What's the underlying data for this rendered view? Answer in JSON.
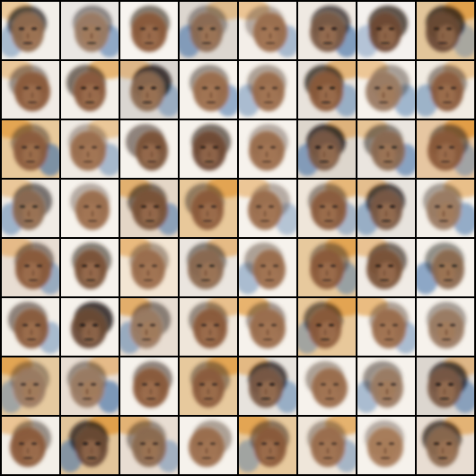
{
  "grid": {
    "rows": 8,
    "columns": 8,
    "border_color": "#000000"
  },
  "palette": {
    "background_light": "#f6f2ec",
    "skin_mid": "#a77a58",
    "skin_dark": "#7a5238",
    "hair_dark": "#2a1c14",
    "accent_blue": "#3d6fa8",
    "accent_orange": "#e0902a"
  },
  "tiles": [
    {
      "background": "#f2efe9",
      "face": "#8f6a4e",
      "dark": "#1f1a18",
      "blue": 0.2,
      "orange": 0.1,
      "bold": 0.8
    },
    {
      "background": "#e9e6e3",
      "face": "#9a7a62",
      "dark": "#2b2521",
      "blue": 0.4,
      "orange": 0.0,
      "bold": 0.4
    },
    {
      "background": "#f7f4ef",
      "face": "#8a5a3a",
      "dark": "#3a2a20",
      "blue": 0.0,
      "orange": 0.0,
      "bold": 0.6
    },
    {
      "background": "#dcd6cf",
      "face": "#8b6a52",
      "dark": "#2d2722",
      "blue": 0.5,
      "orange": 0.1,
      "bold": 0.3
    },
    {
      "background": "#f3eee8",
      "face": "#9a6b4b",
      "dark": "#4a3527",
      "blue": 0.2,
      "orange": 0.2,
      "bold": 0.2
    },
    {
      "background": "#efe9e2",
      "face": "#7a5a44",
      "dark": "#1b1614",
      "blue": 0.6,
      "orange": 0.0,
      "bold": 0.7
    },
    {
      "background": "#f4f1ee",
      "face": "#6f4a35",
      "dark": "#2a1c14",
      "blue": 0.1,
      "orange": 0.0,
      "bold": 0.8
    },
    {
      "background": "#e2c59a",
      "face": "#6a4a35",
      "dark": "#251a14",
      "blue": 0.1,
      "orange": 0.7,
      "bold": 0.9
    },
    {
      "background": "#f0ebe5",
      "face": "#8a5a3a",
      "dark": "#3a2a20",
      "blue": 0.0,
      "orange": 0.1,
      "bold": 0.4
    },
    {
      "background": "#f3efe8",
      "face": "#8a5b3c",
      "dark": "#2a1c14",
      "blue": 0.0,
      "orange": 0.5,
      "bold": 0.6
    },
    {
      "background": "#dad6d1",
      "face": "#8a684f",
      "dark": "#171313",
      "blue": 0.2,
      "orange": 0.2,
      "bold": 0.9
    },
    {
      "background": "#f6f2ec",
      "face": "#9a6b4b",
      "dark": "#3b2b22",
      "blue": 0.4,
      "orange": 0.0,
      "bold": 0.4
    },
    {
      "background": "#f6f2ec",
      "face": "#9a6b4b",
      "dark": "#4a3527",
      "blue": 0.2,
      "orange": 0.0,
      "bold": 0.3
    },
    {
      "background": "#e8e2db",
      "face": "#8a5a3a",
      "dark": "#231a14",
      "blue": 0.3,
      "orange": 0.4,
      "bold": 0.8
    },
    {
      "background": "#f6f2ec",
      "face": "#9a7a62",
      "dark": "#3a2d25",
      "blue": 0.3,
      "orange": 0.2,
      "bold": 0.3
    },
    {
      "background": "#f1ebe2",
      "face": "#8a5b3c",
      "dark": "#3a2a20",
      "blue": 0.3,
      "orange": 0.1,
      "bold": 0.4
    },
    {
      "background": "#e8c99b",
      "face": "#8a5b3c",
      "dark": "#3a2a20",
      "blue": 0.6,
      "orange": 0.6,
      "bold": 0.4
    },
    {
      "background": "#efeae3",
      "face": "#9a6b4b",
      "dark": "#4a3527",
      "blue": 0.2,
      "orange": 0.1,
      "bold": 0.2
    },
    {
      "background": "#f6f2ec",
      "face": "#7a5238",
      "dark": "#3a2a20",
      "blue": 0.0,
      "orange": 0.0,
      "bold": 0.5
    },
    {
      "background": "#f6f2ec",
      "face": "#6f4a35",
      "dark": "#2a1c14",
      "blue": 0.0,
      "orange": 0.0,
      "bold": 0.6
    },
    {
      "background": "#f6f2ec",
      "face": "#9a6b4b",
      "dark": "#4a3527",
      "blue": 0.0,
      "orange": 0.0,
      "bold": 0.2
    },
    {
      "background": "#ddd6cc",
      "face": "#7a5a44",
      "dark": "#171313",
      "blue": 0.5,
      "orange": 0.3,
      "bold": 0.9
    },
    {
      "background": "#eae5df",
      "face": "#8a684f",
      "dark": "#2d2722",
      "blue": 0.5,
      "orange": 0.1,
      "bold": 0.5
    },
    {
      "background": "#e6c6a1",
      "face": "#8a5a3a",
      "dark": "#3a2a20",
      "blue": 0.2,
      "orange": 0.8,
      "bold": 0.6
    },
    {
      "background": "#f0ebe5",
      "face": "#8a684f",
      "dark": "#2d2722",
      "blue": 0.3,
      "orange": 0.1,
      "bold": 0.6
    },
    {
      "background": "#f6f2ec",
      "face": "#9a6b4b",
      "dark": "#4a3527",
      "blue": 0.0,
      "orange": 0.0,
      "bold": 0.2
    },
    {
      "background": "#e4d6c6",
      "face": "#7a5238",
      "dark": "#2a1c14",
      "blue": 0.4,
      "orange": 0.4,
      "bold": 0.6
    },
    {
      "background": "#e8c89a",
      "face": "#8a5a3a",
      "dark": "#3a2a20",
      "blue": 0.0,
      "orange": 0.6,
      "bold": 0.4
    },
    {
      "background": "#f6f2ec",
      "face": "#9a6b4b",
      "dark": "#4a3527",
      "blue": 0.1,
      "orange": 0.2,
      "bold": 0.2
    },
    {
      "background": "#efe6da",
      "face": "#8a5b3c",
      "dark": "#3a2a20",
      "blue": 0.2,
      "orange": 0.4,
      "bold": 0.4
    },
    {
      "background": "#e7e3dd",
      "face": "#7a5a44",
      "dark": "#171313",
      "blue": 0.3,
      "orange": 0.2,
      "bold": 0.8
    },
    {
      "background": "#f3efe8",
      "face": "#9a7a62",
      "dark": "#3a2d25",
      "blue": 0.4,
      "orange": 0.3,
      "bold": 0.3
    },
    {
      "background": "#e8ddd2",
      "face": "#8a5a3a",
      "dark": "#3a2a20",
      "blue": 0.3,
      "orange": 0.2,
      "bold": 0.5
    },
    {
      "background": "#f6f2ec",
      "face": "#7a5238",
      "dark": "#2a1c14",
      "blue": 0.0,
      "orange": 0.0,
      "bold": 0.5
    },
    {
      "background": "#f3e5d3",
      "face": "#9a6b4b",
      "dark": "#4a3527",
      "blue": 0.0,
      "orange": 0.3,
      "bold": 0.3
    },
    {
      "background": "#eae5df",
      "face": "#8a684f",
      "dark": "#2d2722",
      "blue": 0.0,
      "orange": 0.3,
      "bold": 0.5
    },
    {
      "background": "#f6f2ec",
      "face": "#9a6b4b",
      "dark": "#4a3527",
      "blue": 0.2,
      "orange": 0.0,
      "bold": 0.3
    },
    {
      "background": "#e7c99d",
      "face": "#8a5a3a",
      "dark": "#3a2a20",
      "blue": 0.3,
      "orange": 0.6,
      "bold": 0.4
    },
    {
      "background": "#f0ebe5",
      "face": "#7a5238",
      "dark": "#2a1c14",
      "blue": 0.0,
      "orange": 0.2,
      "bold": 0.6
    },
    {
      "background": "#f6f2ec",
      "face": "#8a684f",
      "dark": "#2d2722",
      "blue": 0.5,
      "orange": 0.0,
      "bold": 0.4
    },
    {
      "background": "#f3efe8",
      "face": "#8a5b3c",
      "dark": "#3a2a20",
      "blue": 0.2,
      "orange": 0.0,
      "bold": 0.5
    },
    {
      "background": "#f6f2ec",
      "face": "#6a4a35",
      "dark": "#171313",
      "blue": 0.0,
      "orange": 0.0,
      "bold": 0.9
    },
    {
      "background": "#e8ddd2",
      "face": "#9a7a62",
      "dark": "#3a2d25",
      "blue": 0.3,
      "orange": 0.5,
      "bold": 0.5
    },
    {
      "background": "#efe6da",
      "face": "#8a5a3a",
      "dark": "#3a2a20",
      "blue": 0.0,
      "orange": 0.2,
      "bold": 0.4
    },
    {
      "background": "#f6f2ec",
      "face": "#9a6b4b",
      "dark": "#4a3527",
      "blue": 0.0,
      "orange": 0.6,
      "bold": 0.4
    },
    {
      "background": "#e8c89a",
      "face": "#8a5a3a",
      "dark": "#2a1c14",
      "blue": 0.2,
      "orange": 0.6,
      "bold": 0.6
    },
    {
      "background": "#f6f2ec",
      "face": "#9a6b4b",
      "dark": "#4a3527",
      "blue": 0.2,
      "orange": 0.4,
      "bold": 0.3
    },
    {
      "background": "#f6f2ec",
      "face": "#9a7a62",
      "dark": "#3a2d25",
      "blue": 0.0,
      "orange": 0.0,
      "bold": 0.3
    },
    {
      "background": "#e5c99f",
      "face": "#9a7a62",
      "dark": "#3a2d25",
      "blue": 0.2,
      "orange": 0.6,
      "bold": 0.3
    },
    {
      "background": "#e8ddd2",
      "face": "#9a7a62",
      "dark": "#3a2d25",
      "blue": 0.6,
      "orange": 0.2,
      "bold": 0.4
    },
    {
      "background": "#f6f2ec",
      "face": "#8a5a3a",
      "dark": "#3a2a20",
      "blue": 0.0,
      "orange": 0.0,
      "bold": 0.5
    },
    {
      "background": "#e7c99d",
      "face": "#8a5b3c",
      "dark": "#3a2a20",
      "blue": 0.0,
      "orange": 0.6,
      "bold": 0.4
    },
    {
      "background": "#e7e3dd",
      "face": "#7a5a44",
      "dark": "#171313",
      "blue": 0.3,
      "orange": 0.3,
      "bold": 0.8
    },
    {
      "background": "#f6f2ec",
      "face": "#9a6b4b",
      "dark": "#4a3527",
      "blue": 0.0,
      "orange": 0.0,
      "bold": 0.3
    },
    {
      "background": "#f6f2ec",
      "face": "#9a7a62",
      "dark": "#3a2d25",
      "blue": 0.2,
      "orange": 0.0,
      "bold": 0.4
    },
    {
      "background": "#dcd6cf",
      "face": "#7a5a44",
      "dark": "#171313",
      "blue": 0.4,
      "orange": 0.2,
      "bold": 0.8
    },
    {
      "background": "#f3efe8",
      "face": "#8a5a3a",
      "dark": "#3a2a20",
      "blue": 0.0,
      "orange": 0.2,
      "bold": 0.4
    },
    {
      "background": "#e2c59a",
      "face": "#6a4a35",
      "dark": "#171313",
      "blue": 0.5,
      "orange": 0.7,
      "bold": 0.8
    },
    {
      "background": "#e8ddd2",
      "face": "#8a684f",
      "dark": "#3a2a20",
      "blue": 0.2,
      "orange": 0.4,
      "bold": 0.4
    },
    {
      "background": "#f6f2ec",
      "face": "#9a6b4b",
      "dark": "#4a3527",
      "blue": 0.0,
      "orange": 0.0,
      "bold": 0.3
    },
    {
      "background": "#e7c99d",
      "face": "#8a5a3a",
      "dark": "#3a2a20",
      "blue": 0.2,
      "orange": 0.6,
      "bold": 0.5
    },
    {
      "background": "#efe6da",
      "face": "#9a6b4b",
      "dark": "#4a3527",
      "blue": 0.2,
      "orange": 0.5,
      "bold": 0.3
    },
    {
      "background": "#f6f2ec",
      "face": "#a77a58",
      "dark": "#4a3527",
      "blue": 0.0,
      "orange": 0.0,
      "bold": 0.2
    },
    {
      "background": "#e8ddd2",
      "face": "#8a684f",
      "dark": "#2a1c14",
      "blue": 0.0,
      "orange": 0.4,
      "bold": 0.8
    }
  ]
}
